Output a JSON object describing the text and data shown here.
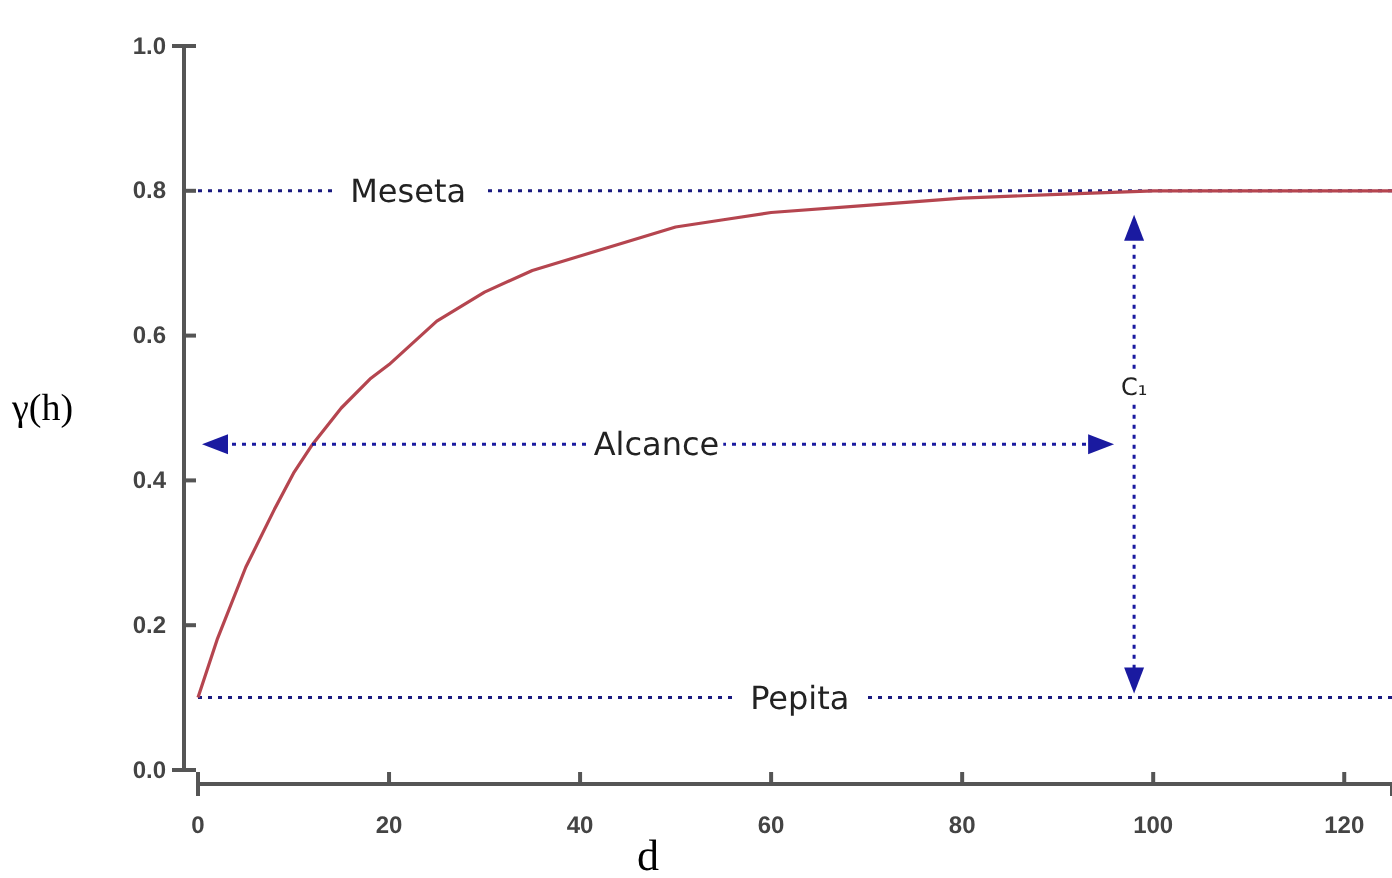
{
  "chart_data": {
    "type": "line",
    "xlabel": "d",
    "ylabel": "γ(h)",
    "x": [
      0,
      2,
      5,
      8,
      10,
      12,
      15,
      18,
      20,
      25,
      30,
      35,
      40,
      45,
      50,
      55,
      60,
      70,
      80,
      90,
      100,
      110,
      125
    ],
    "series": [
      {
        "color": "#b5454f",
        "values": [
          0.1,
          0.18,
          0.28,
          0.36,
          0.41,
          0.45,
          0.5,
          0.54,
          0.56,
          0.62,
          0.66,
          0.69,
          0.71,
          0.73,
          0.75,
          0.76,
          0.77,
          0.78,
          0.79,
          0.795,
          0.8,
          0.8,
          0.8
        ]
      }
    ],
    "xlim": [
      0,
      125
    ],
    "xticks": [
      0,
      20,
      40,
      60,
      80,
      100,
      120
    ],
    "ylim": [
      0,
      1
    ],
    "yticks": [
      {
        "value": 0,
        "label": "0.0"
      },
      0.2,
      0.4,
      0.6,
      0.8,
      {
        "value": 1,
        "label": "1.0"
      }
    ],
    "grid": false,
    "marker": "none",
    "line_style": "solid",
    "ref_lines": [
      {
        "axis": "y",
        "value": 0.8,
        "label": "Meseta",
        "color": "#1a1a80",
        "line_style": "dotted"
      },
      {
        "axis": "y",
        "value": 0.1,
        "label": "Pepita",
        "color": "#1a1a80",
        "line_style": "dotted"
      },
      {
        "axis": "x",
        "value": 98,
        "label": "C₁",
        "color": "#1a1aa0",
        "line_style": "dotted"
      }
    ],
    "annotations": [
      "Alcance"
    ]
  }
}
